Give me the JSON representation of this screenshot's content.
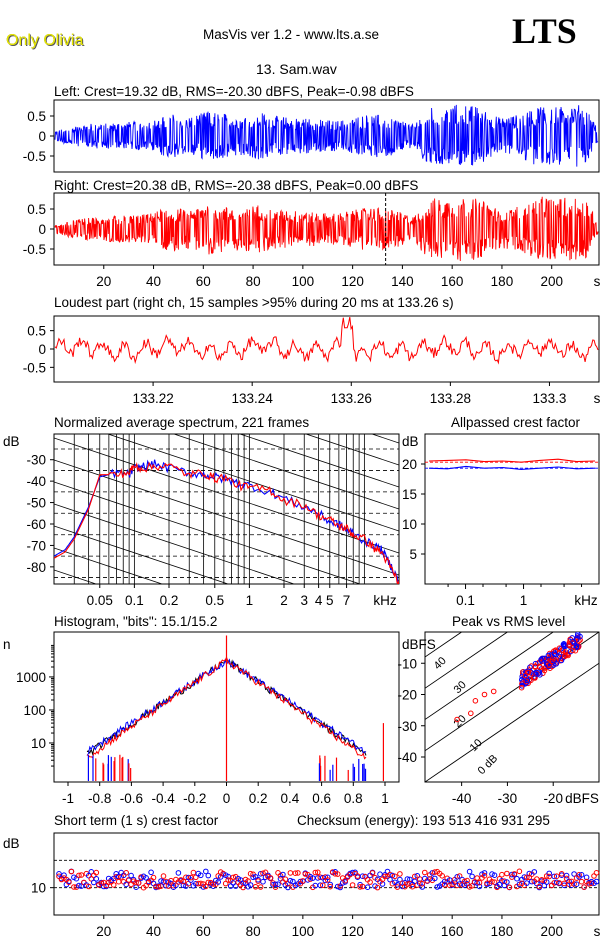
{
  "header": {
    "owner": "Only Olivia",
    "app_title": "MasVis ver 1.2 - www.lts.a.se",
    "logo": "LTS",
    "file_name": "13. Sam.wav"
  },
  "colors": {
    "left": "#0000ff",
    "right": "#ff0000",
    "axis": "#000000"
  },
  "chart_data": [
    {
      "id": "left",
      "type": "line",
      "title": "Left: Crest=19.32 dB, RMS=-20.30 dBFS, Peak=-0.98 dBFS",
      "ylim": [
        -0.9,
        0.9
      ],
      "yticks": [
        "0.5",
        "0",
        "-0.5"
      ],
      "ytick_values": [
        0.5,
        0,
        -0.5
      ],
      "xlim": [
        0,
        219
      ],
      "envelope": [
        0.12,
        0.2,
        0.25,
        0.3,
        0.33,
        0.32,
        0.34,
        0.36,
        0.35,
        0.38,
        0.5,
        0.55,
        0.45,
        0.52,
        0.62,
        0.58,
        0.55,
        0.5,
        0.56,
        0.6,
        0.5,
        0.48,
        0.45,
        0.46,
        0.42,
        0.4,
        0.38,
        0.42,
        0.5,
        0.55,
        0.52,
        0.48,
        0.36,
        0.28,
        0.62,
        0.75,
        0.72,
        0.8,
        0.78,
        0.72,
        0.6,
        0.45,
        0.5,
        0.55,
        0.7,
        0.8,
        0.72,
        0.75,
        0.8,
        0.7,
        0.15
      ]
    },
    {
      "id": "right",
      "type": "line",
      "title": "Right: Crest=20.38 dB, RMS=-20.38 dBFS, Peak=0.00 dBFS",
      "ylim": [
        -0.9,
        0.9
      ],
      "yticks": [
        "0.5",
        "0",
        "-0.5"
      ],
      "ytick_values": [
        0.5,
        0,
        -0.5
      ],
      "xlim": [
        0,
        219
      ],
      "xticks": [
        20,
        40,
        60,
        80,
        100,
        120,
        140,
        160,
        180,
        200
      ],
      "xunit": "s",
      "marker_x": 133.26,
      "envelope": [
        0.1,
        0.18,
        0.24,
        0.28,
        0.3,
        0.32,
        0.33,
        0.35,
        0.36,
        0.4,
        0.52,
        0.55,
        0.48,
        0.52,
        0.65,
        0.6,
        0.55,
        0.52,
        0.58,
        0.62,
        0.5,
        0.48,
        0.46,
        0.45,
        0.42,
        0.4,
        0.4,
        0.45,
        0.5,
        0.55,
        0.52,
        0.5,
        0.4,
        0.3,
        0.65,
        0.78,
        0.72,
        0.82,
        0.8,
        0.75,
        0.62,
        0.48,
        0.52,
        0.58,
        0.72,
        0.82,
        0.75,
        0.78,
        0.85,
        0.72,
        0.15
      ]
    },
    {
      "id": "loudest",
      "type": "line",
      "title": "Loudest part (right ch, 15 samples >95% during 20 ms at 133.26 s)",
      "ylim": [
        -0.9,
        0.9
      ],
      "yticks": [
        "0.5",
        "0",
        "-0.5"
      ],
      "ytick_values": [
        0.5,
        0,
        -0.5
      ],
      "xlim": [
        133.2,
        133.31
      ],
      "xticks": [
        "133.22",
        "133.24",
        "133.26",
        "133.28",
        "133.3"
      ],
      "xtick_values": [
        133.22,
        133.24,
        133.26,
        133.28,
        133.3
      ],
      "xunit": "s"
    },
    {
      "id": "spectrum",
      "type": "line",
      "title": "Normalized average spectrum, 221 frames",
      "ylabel": "dB",
      "yticks": [
        "-30",
        "-40",
        "-50",
        "-60",
        "-70",
        "-80"
      ],
      "ytick_values": [
        -30,
        -40,
        -50,
        -60,
        -70,
        -80
      ],
      "ylim": [
        -88,
        -18
      ],
      "xlim_khz": [
        0.02,
        20
      ],
      "xticks": [
        "0.05",
        "0.1",
        "0.2",
        "0.5",
        "1",
        "2",
        "3",
        "4",
        "5",
        "7"
      ],
      "xtick_values": [
        0.05,
        0.1,
        0.2,
        0.5,
        1,
        2,
        3,
        4,
        5,
        7
      ],
      "xunit": "kHz",
      "series": [
        {
          "color": "#0000ff",
          "x": [
            0.02,
            0.025,
            0.03,
            0.04,
            0.05,
            0.07,
            0.09,
            0.1,
            0.12,
            0.15,
            0.2,
            0.3,
            0.4,
            0.5,
            0.6,
            0.8,
            1,
            1.5,
            2,
            3,
            4,
            5,
            6,
            7,
            8,
            10,
            12,
            14,
            16,
            18,
            20
          ],
          "y": [
            -75,
            -72,
            -66,
            -52,
            -38,
            -36,
            -37,
            -34,
            -33,
            -32,
            -34,
            -36,
            -37,
            -38,
            -39,
            -41,
            -42,
            -45,
            -48,
            -52,
            -55,
            -59,
            -60,
            -63,
            -64,
            -68,
            -70,
            -72,
            -77,
            -82,
            -87
          ]
        },
        {
          "color": "#ff0000",
          "x": [
            0.02,
            0.025,
            0.03,
            0.04,
            0.05,
            0.07,
            0.09,
            0.1,
            0.12,
            0.15,
            0.2,
            0.3,
            0.4,
            0.5,
            0.6,
            0.8,
            1,
            1.5,
            2,
            3,
            4,
            5,
            6,
            7,
            8,
            10,
            12,
            14,
            16,
            18,
            20
          ],
          "y": [
            -76,
            -73,
            -67,
            -53,
            -37,
            -37,
            -36,
            -33,
            -34,
            -33,
            -33,
            -37,
            -36,
            -39,
            -38,
            -42,
            -43,
            -44,
            -49,
            -51,
            -56,
            -58,
            -61,
            -62,
            -65,
            -67,
            -71,
            -73,
            -78,
            -83,
            -88
          ]
        }
      ]
    },
    {
      "id": "allpass",
      "type": "line",
      "title": "Allpassed crest factor",
      "ylabel": "dB",
      "yticks": [
        "20",
        "15",
        "10",
        "5"
      ],
      "ytick_values": [
        20,
        15,
        10,
        5
      ],
      "ylim": [
        0,
        25
      ],
      "xticks": [
        "0.1",
        "1"
      ],
      "xtick_values": [
        0.1,
        1
      ],
      "xunit": "kHz",
      "series": [
        {
          "color": "#ff0000",
          "y": [
            20.5,
            20.6,
            20.7,
            20.4,
            20.5,
            20.3,
            20.6,
            20.8,
            20.4,
            20.5
          ]
        },
        {
          "color": "#0000ff",
          "y": [
            19.3,
            19.2,
            19.6,
            19.3,
            19.4,
            19.1,
            19.3,
            19.5,
            19.2,
            19.3
          ]
        }
      ]
    },
    {
      "id": "histogram",
      "type": "line",
      "title": "Histogram, \"bits\": 15.1/15.2",
      "ylabel": "n",
      "yticks": [
        "1000",
        "100",
        "10"
      ],
      "ytick_values": [
        1000,
        100,
        10
      ],
      "xticks": [
        "-1",
        "-0.8",
        "-0.6",
        "-0.4",
        "-0.2",
        "0",
        "0.2",
        "0.4",
        "0.6",
        "0.8",
        "1"
      ],
      "xtick_values": [
        -1,
        -0.8,
        -0.6,
        -0.4,
        -0.2,
        0,
        0.2,
        0.4,
        0.6,
        0.8,
        1
      ]
    },
    {
      "id": "peakrms",
      "type": "scatter",
      "title": "Peak vs RMS level",
      "ylabel": "dBFS",
      "yticks": [
        "-10",
        "-20",
        "-30",
        "-40"
      ],
      "ytick_values": [
        -10,
        -20,
        -30,
        -40
      ],
      "xticks": [
        "-40",
        "-30",
        "-20"
      ],
      "xtick_values": [
        -40,
        -30,
        -20
      ],
      "xunit": "dBFS",
      "diag_labels": [
        "40",
        "30",
        "20",
        "10",
        "0 dB"
      ]
    },
    {
      "id": "shortcrest",
      "type": "scatter",
      "title": "Short term (1 s) crest factor",
      "ylabel": "dB",
      "yticks": [
        "10"
      ],
      "ytick_values": [
        10
      ],
      "xticks": [
        20,
        40,
        60,
        80,
        100,
        120,
        140,
        160,
        180,
        200
      ],
      "xunit": "s"
    }
  ],
  "checksum": "Checksum (energy):  193 513 416 931 295"
}
